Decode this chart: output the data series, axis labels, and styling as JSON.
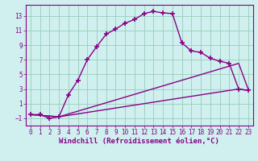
{
  "xlabel": "Windchill (Refroidissement éolien,°C)",
  "bg_color": "#cff0ee",
  "grid_color": "#99ccbb",
  "line_color": "#880088",
  "xlim": [
    -0.5,
    23.5
  ],
  "ylim": [
    -2.0,
    14.5
  ],
  "xticks": [
    0,
    1,
    2,
    3,
    4,
    5,
    6,
    7,
    8,
    9,
    10,
    11,
    12,
    13,
    14,
    15,
    16,
    17,
    18,
    19,
    20,
    21,
    22,
    23
  ],
  "yticks": [
    -1,
    1,
    3,
    5,
    7,
    9,
    11,
    13
  ],
  "line1_x": [
    0,
    1,
    2,
    3,
    4,
    5,
    6,
    7,
    8,
    9,
    10,
    11,
    12,
    13,
    14,
    15,
    16,
    17,
    18,
    19,
    20,
    21,
    22,
    23
  ],
  "line1_y": [
    -0.5,
    -0.5,
    -1.0,
    -0.8,
    2.2,
    4.2,
    7.0,
    8.8,
    10.5,
    11.2,
    12.0,
    12.5,
    13.3,
    13.6,
    13.4,
    13.3,
    9.3,
    8.2,
    8.0,
    7.2,
    6.8,
    6.5,
    3.0,
    2.8
  ],
  "line2_x": [
    0,
    3,
    22,
    23
  ],
  "line2_y": [
    -0.5,
    -0.8,
    6.5,
    3.0
  ],
  "line3_x": [
    0,
    3,
    22,
    23
  ],
  "line3_y": [
    -0.5,
    -0.8,
    3.0,
    2.8
  ],
  "marker": "+",
  "markersize": 4,
  "markeredgewidth": 1.2,
  "linewidth": 1.0,
  "tick_fontsize": 5.5,
  "xlabel_fontsize": 6.5,
  "xlabel_fontweight": "bold"
}
